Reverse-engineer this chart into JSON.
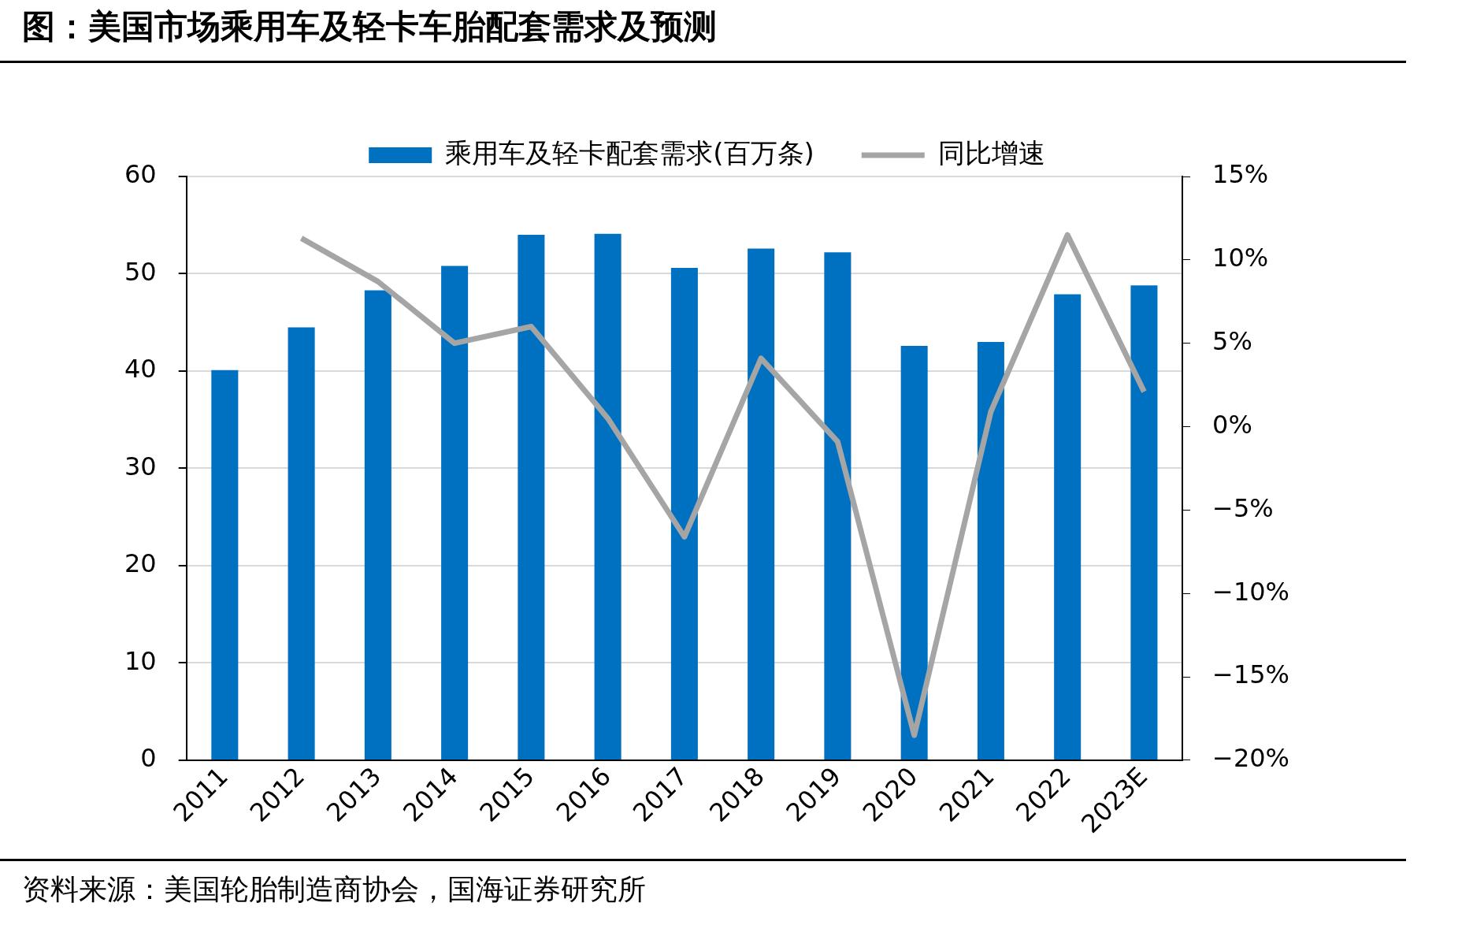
{
  "chart_data": {
    "type": "bar",
    "title": "图：美国市场乘用车及轻卡车胎配套需求及预测",
    "categories": [
      "2011",
      "2012",
      "2013",
      "2014",
      "2015",
      "2016",
      "2017",
      "2018",
      "2019",
      "2020",
      "2021",
      "2022",
      "2023E"
    ],
    "series": [
      {
        "name": "乘用车及轻卡配套需求(百万条)",
        "color": "#0070c0",
        "values": [
          40.1,
          44.5,
          48.3,
          50.8,
          54.0,
          54.1,
          50.6,
          52.6,
          52.2,
          42.6,
          43.0,
          47.9,
          48.8
        ]
      },
      {
        "name": "同比增速",
        "type": "line",
        "axis": "y2",
        "color": "#a5a5a5",
        "values": [
          null,
          11.3,
          8.7,
          5.0,
          6.0,
          0.5,
          -6.6,
          4.1,
          -0.9,
          -18.5,
          0.9,
          11.5,
          2.1
        ]
      }
    ],
    "ylim": [
      0,
      60
    ],
    "yticks": [
      0,
      10,
      20,
      30,
      40,
      50,
      60
    ],
    "y2lim": [
      -20,
      15
    ],
    "y2ticks": [
      {
        "value": -20,
        "label": "−20%"
      },
      {
        "value": -15,
        "label": "−15%"
      },
      {
        "value": -10,
        "label": "−10%"
      },
      {
        "value": -5,
        "label": "−5%"
      },
      {
        "value": 0,
        "label": "0%"
      },
      {
        "value": 5,
        "label": "5%"
      },
      {
        "value": 10,
        "label": "10%"
      },
      {
        "value": 15,
        "label": "15%"
      }
    ],
    "grid": "y",
    "legend": "top",
    "marker": "none",
    "annotations": [
      "资料来源：美国轮胎制造商协会，国海证券研究所"
    ]
  }
}
